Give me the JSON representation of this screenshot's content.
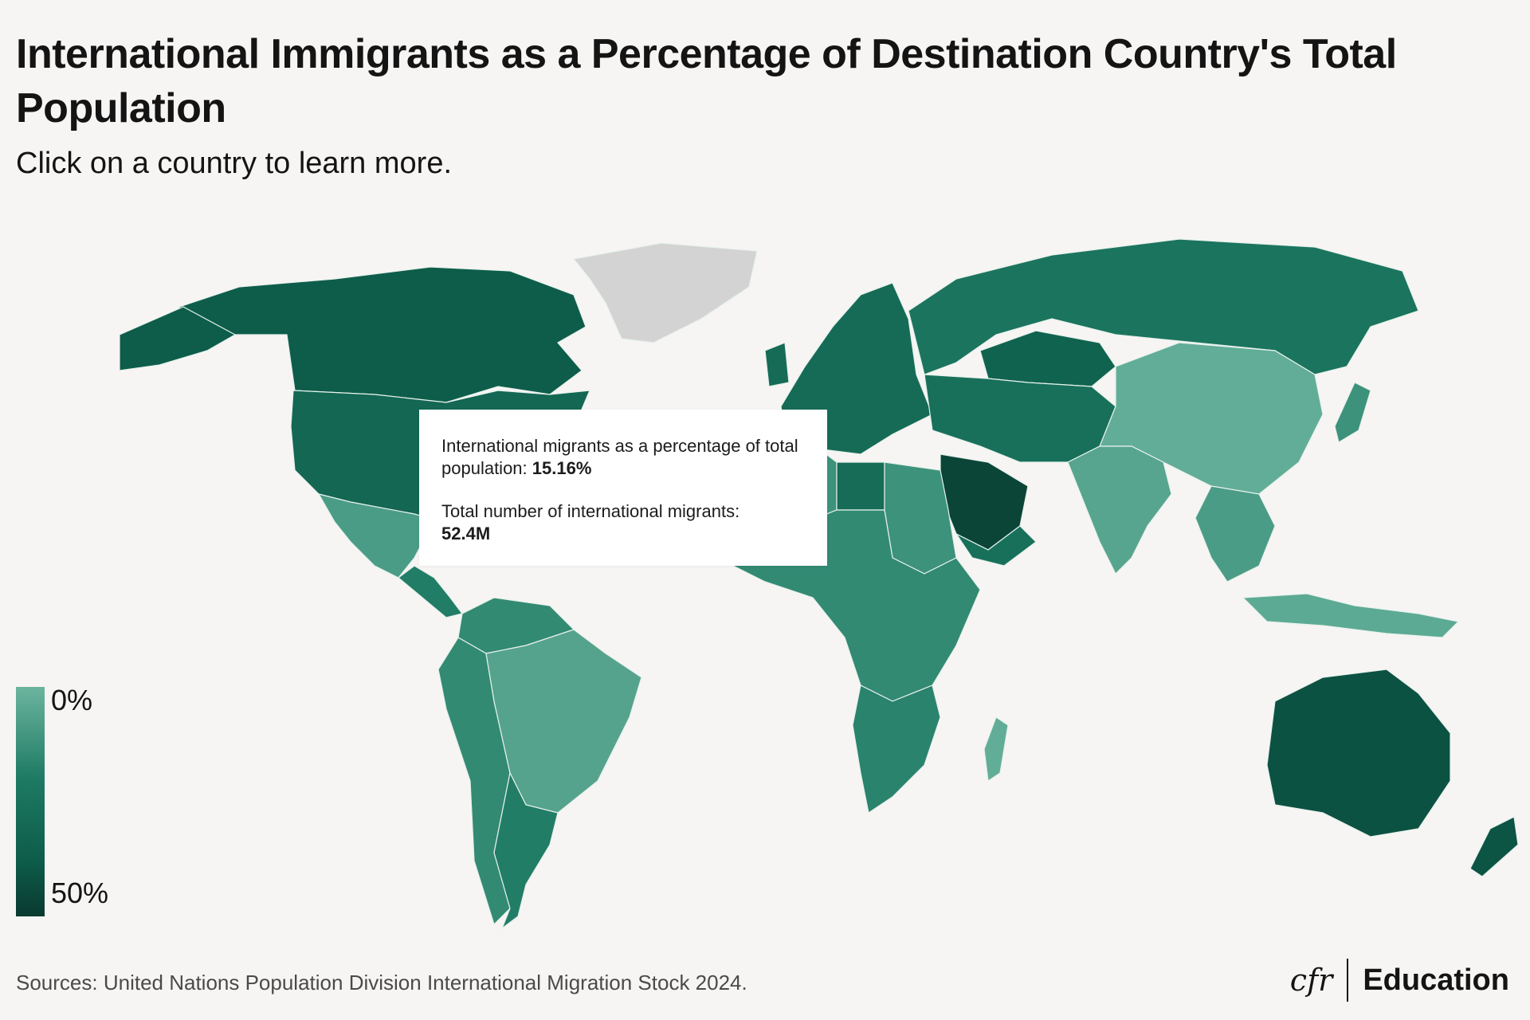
{
  "header": {
    "title": "International Immigrants as a Percentage of Destination Country's Total Population",
    "subtitle": "Click on a country to learn more."
  },
  "tooltip": {
    "line1_label": "International migrants as a percentage of total population:",
    "line1_value": "15.16%",
    "line2_label": "Total number of international migrants:",
    "line2_value": "52.4M"
  },
  "legend": {
    "min_label": "0%",
    "max_label": "50%",
    "range": [
      0,
      50
    ],
    "colors": [
      "#6cb59f",
      "#1e7a63",
      "#0d5d4a",
      "#0a3a30"
    ]
  },
  "footer": {
    "sources": "Sources: United Nations Population Division International Migration Stock 2024.",
    "brand_logo": "cfr",
    "brand_text": "Education"
  },
  "map": {
    "nodata_color": "#d3d3d3",
    "regions": [
      {
        "id": "canada",
        "value": 22
      },
      {
        "id": "usa",
        "value": 15.16
      },
      {
        "id": "mexico",
        "value": 1
      },
      {
        "id": "central-america",
        "value": 5
      },
      {
        "id": "south-america",
        "value": 3
      },
      {
        "id": "brazil",
        "value": 0.5
      },
      {
        "id": "argentina",
        "value": 5
      },
      {
        "id": "greenland",
        "value": null
      },
      {
        "id": "europe",
        "value": 13
      },
      {
        "id": "russia",
        "value": 8
      },
      {
        "id": "kazakhstan",
        "value": 18
      },
      {
        "id": "china",
        "value": 0.1
      },
      {
        "id": "india",
        "value": 0.4
      },
      {
        "id": "middle-east",
        "value": 10
      },
      {
        "id": "saudi-arabia",
        "value": 40
      },
      {
        "id": "north-africa",
        "value": 2
      },
      {
        "id": "libya",
        "value": 12
      },
      {
        "id": "central-africa",
        "value": 3
      },
      {
        "id": "southern-africa",
        "value": 4
      },
      {
        "id": "madagascar",
        "value": 0.1
      },
      {
        "id": "southeast-asia",
        "value": 1
      },
      {
        "id": "indonesia",
        "value": 0.2
      },
      {
        "id": "japan",
        "value": 2
      },
      {
        "id": "australia",
        "value": 30
      },
      {
        "id": "new-zealand",
        "value": 28
      }
    ]
  }
}
